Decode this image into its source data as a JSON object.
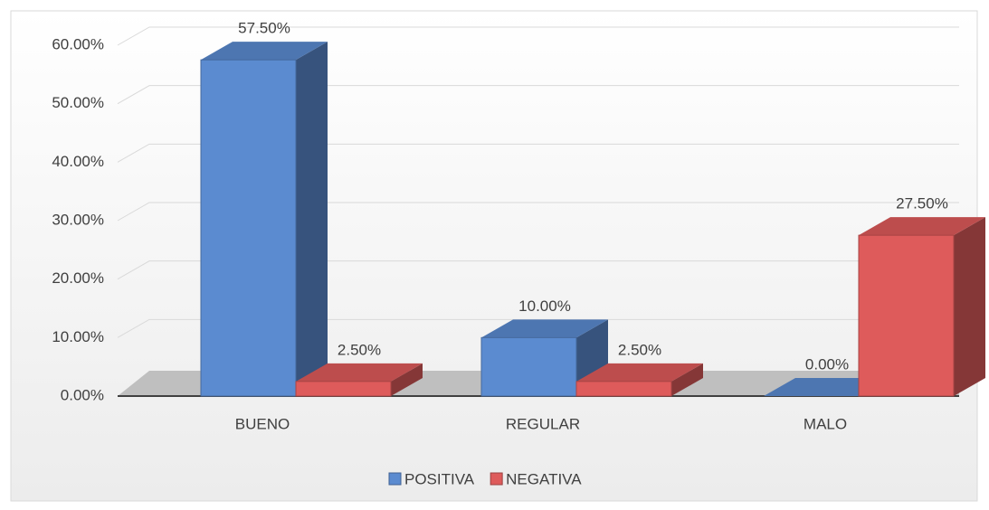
{
  "chart_data": {
    "type": "bar3d",
    "categories": [
      "BUENO",
      "REGULAR",
      "MALO"
    ],
    "series": [
      {
        "name": "POSITIVA",
        "color": "#5b8bd0",
        "values": [
          57.5,
          10,
          0
        ],
        "value_labels": [
          "57.50%",
          "10.00%",
          "0.00%"
        ]
      },
      {
        "name": "NEGATIVA",
        "color": "#de5b5b",
        "values": [
          2.5,
          2.5,
          27.5
        ],
        "value_labels": [
          "2.50%",
          "2.50%",
          "27.50%"
        ]
      }
    ],
    "ylim": [
      0,
      60
    ],
    "yticks": [
      {
        "value": 0,
        "label": "0.00%"
      },
      {
        "value": 10,
        "label": "10.00%"
      },
      {
        "value": 20,
        "label": "20.00%"
      },
      {
        "value": 30,
        "label": "30.00%"
      },
      {
        "value": 40,
        "label": "40.00%"
      },
      {
        "value": 50,
        "label": "50.00%"
      },
      {
        "value": 60,
        "label": "60.00%"
      }
    ],
    "grid": true,
    "legend": "bottom"
  }
}
